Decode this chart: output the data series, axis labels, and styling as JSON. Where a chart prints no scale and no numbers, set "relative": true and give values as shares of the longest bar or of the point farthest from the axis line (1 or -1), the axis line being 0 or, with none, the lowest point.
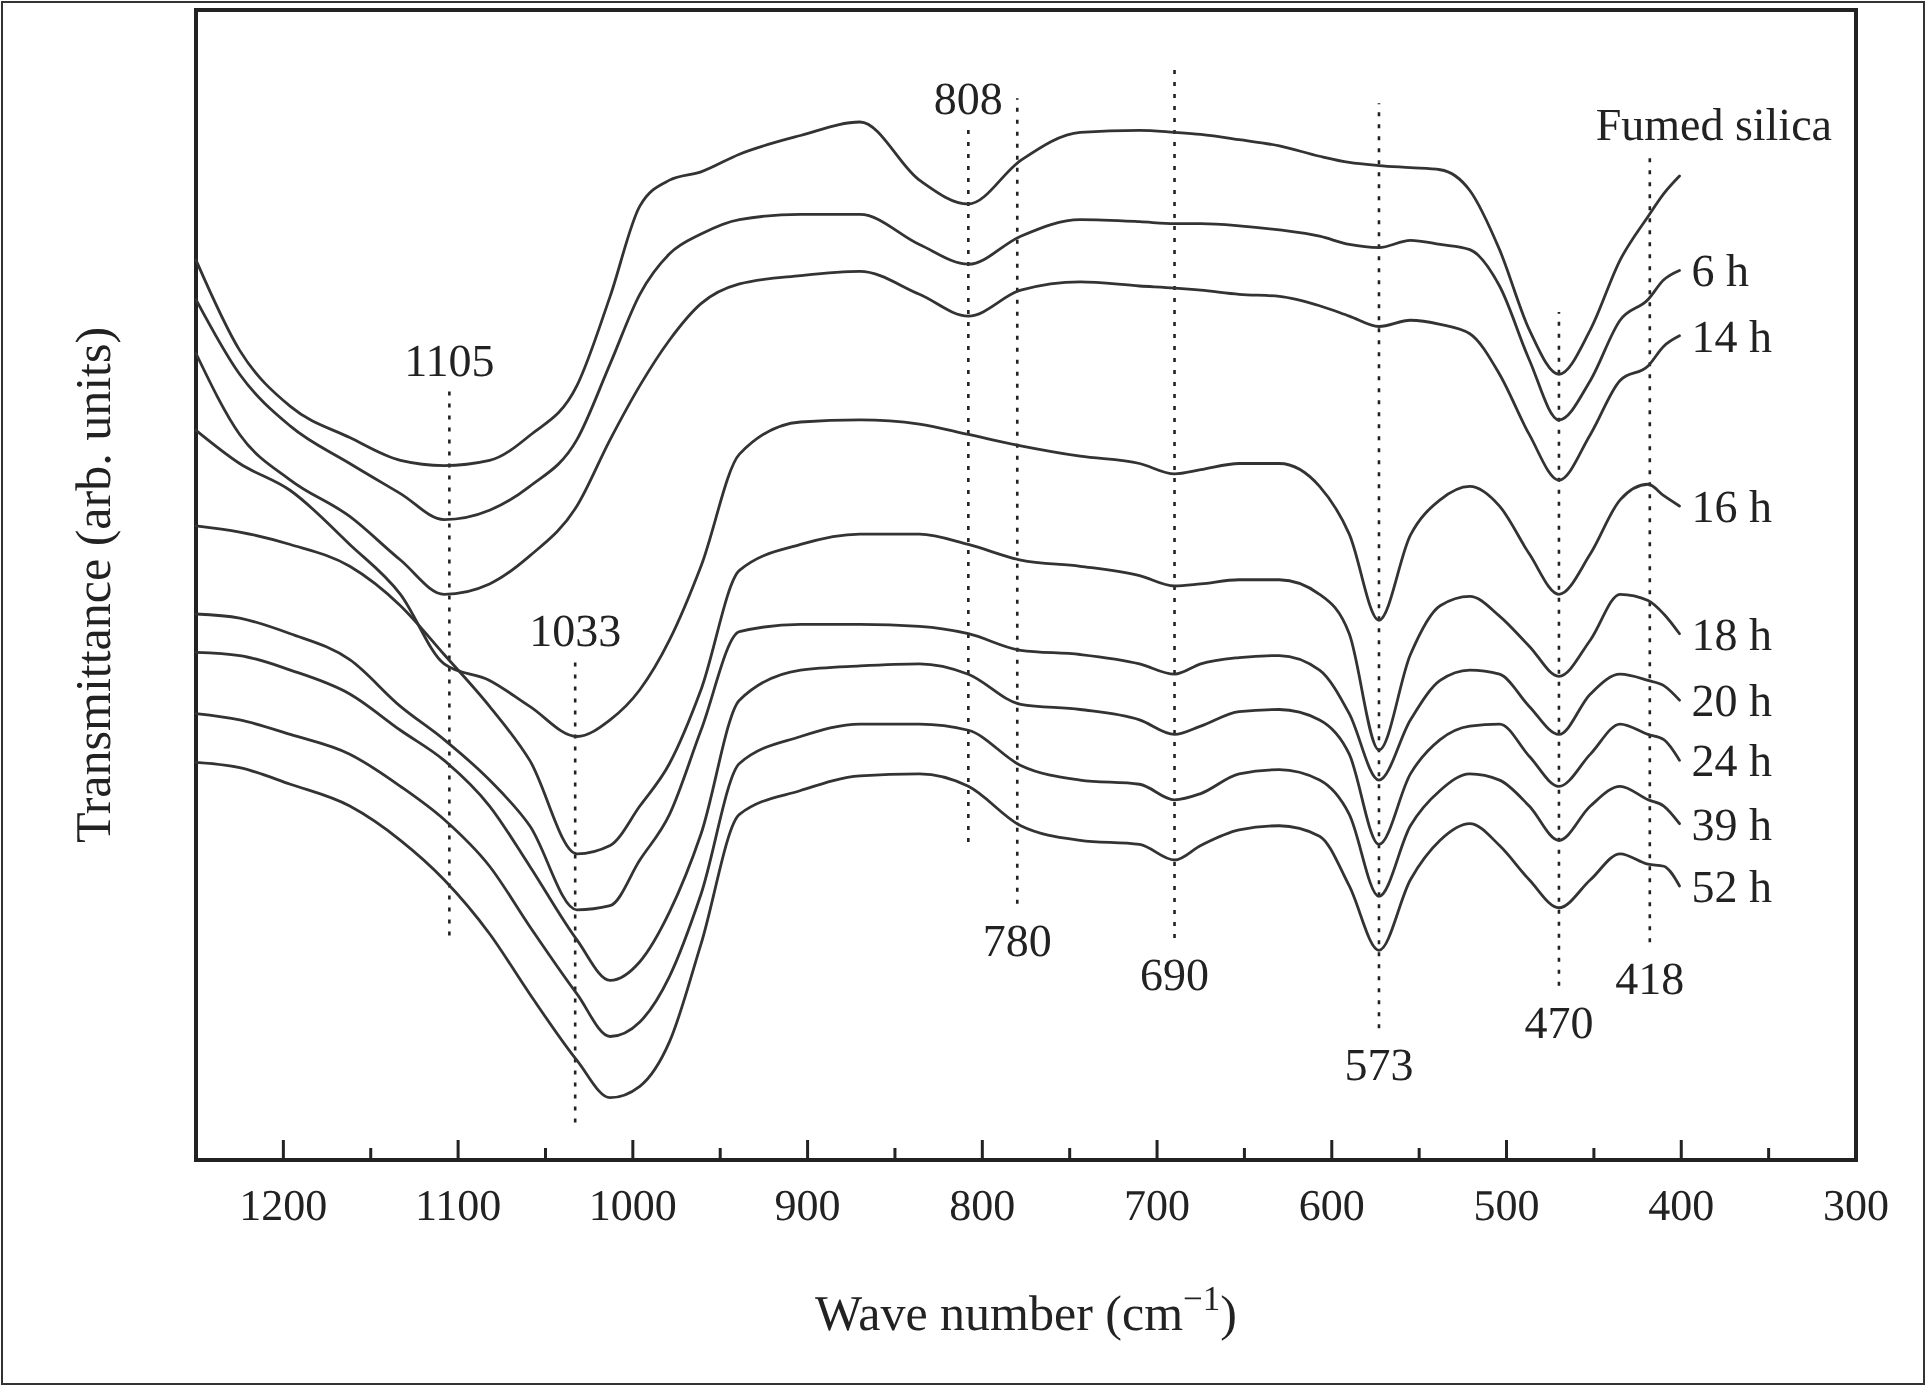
{
  "chart_data": {
    "type": "line",
    "relative": true,
    "xlabel": "Wave number (cm$^{−1}$)",
    "ylabel": "Transmittance (arb. units)",
    "xlim": [
      1250,
      300
    ],
    "xticks": [
      {
        "value": 1250,
        "label": null
      },
      1200,
      {
        "value": 1150,
        "label": null
      },
      1100,
      {
        "value": 1050,
        "label": null
      },
      1000,
      {
        "value": 950,
        "label": null
      },
      900,
      {
        "value": 850,
        "label": null
      },
      800,
      {
        "value": 750,
        "label": null
      },
      700,
      {
        "value": 650,
        "label": null
      },
      600,
      {
        "value": 550,
        "label": null
      },
      500,
      {
        "value": 450,
        "label": null
      },
      400,
      {
        "value": 350,
        "label": null
      },
      300
    ],
    "x": [
      1250,
      1225,
      1196,
      1162,
      1133,
      1108,
      1082,
      1059,
      1032,
      1013,
      996,
      979,
      961,
      939,
      904,
      870,
      836,
      808,
      778,
      744,
      710,
      690,
      675,
      653,
      630,
      607,
      590,
      573,
      555,
      538,
      521,
      504,
      487,
      470,
      452,
      435,
      419,
      410,
      401
    ],
    "series": [
      {
        "name": "Fumed silica",
        "color": "#333333",
        "values": [
          0.867,
          0.78,
          0.726,
          0.696,
          0.674,
          0.669,
          0.674,
          0.698,
          0.746,
          0.832,
          0.919,
          0.944,
          0.952,
          0.969,
          0.987,
          1,
          0.944,
          0.921,
          0.963,
          0.99,
          0.992,
          0.99,
          0.988,
          0.983,
          0.977,
          0.967,
          0.961,
          0.958,
          0.956,
          0.954,
          0.934,
          0.877,
          0.8,
          0.757,
          0.8,
          0.867,
          0.909,
          0.931,
          0.948
        ]
      },
      {
        "name": "6 h",
        "color": "#333333",
        "values": [
          0.829,
          0.757,
          0.707,
          0.671,
          0.642,
          0.617,
          0.626,
          0.649,
          0.694,
          0.767,
          0.834,
          0.873,
          0.892,
          0.906,
          0.911,
          0.911,
          0.882,
          0.863,
          0.89,
          0.906,
          0.904,
          0.902,
          0.902,
          0.9,
          0.896,
          0.89,
          0.882,
          0.879,
          0.886,
          0.882,
          0.877,
          0.842,
          0.771,
          0.713,
          0.751,
          0.809,
          0.829,
          0.848,
          0.857
        ]
      },
      {
        "name": "14 h",
        "color": "#333333",
        "values": [
          0.777,
          0.699,
          0.655,
          0.62,
          0.578,
          0.545,
          0.555,
          0.582,
          0.63,
          0.694,
          0.746,
          0.79,
          0.825,
          0.844,
          0.852,
          0.856,
          0.834,
          0.813,
          0.838,
          0.846,
          0.842,
          0.84,
          0.838,
          0.834,
          0.832,
          0.823,
          0.813,
          0.803,
          0.809,
          0.805,
          0.796,
          0.757,
          0.699,
          0.655,
          0.699,
          0.751,
          0.765,
          0.784,
          0.794
        ]
      },
      {
        "name": "16 h",
        "color": "#333333",
        "values": [
          0.703,
          0.671,
          0.645,
          0.593,
          0.545,
          0.478,
          0.462,
          0.437,
          0.408,
          0.424,
          0.453,
          0.501,
          0.572,
          0.68,
          0.711,
          0.713,
          0.709,
          0.699,
          0.688,
          0.678,
          0.671,
          0.661,
          0.665,
          0.671,
          0.671,
          0.649,
          0.603,
          0.52,
          0.602,
          0.636,
          0.649,
          0.63,
          0.584,
          0.545,
          0.584,
          0.636,
          0.651,
          0.64,
          0.63
        ]
      },
      {
        "name": "18 h",
        "color": "#333333",
        "values": [
          0.611,
          0.605,
          0.593,
          0.572,
          0.534,
          0.487,
          0.437,
          0.385,
          0.295,
          0.303,
          0.341,
          0.382,
          0.453,
          0.568,
          0.593,
          0.603,
          0.603,
          0.593,
          0.578,
          0.572,
          0.563,
          0.553,
          0.555,
          0.559,
          0.559,
          0.545,
          0.507,
          0.395,
          0.487,
          0.534,
          0.543,
          0.524,
          0.495,
          0.466,
          0.501,
          0.545,
          0.539,
          0.526,
          0.507
        ]
      },
      {
        "name": "20 h",
        "color": "#333333",
        "values": [
          0.526,
          0.522,
          0.507,
          0.482,
          0.437,
          0.405,
          0.366,
          0.322,
          0.241,
          0.245,
          0.289,
          0.333,
          0.414,
          0.509,
          0.516,
          0.516,
          0.514,
          0.507,
          0.491,
          0.487,
          0.478,
          0.468,
          0.478,
          0.484,
          0.486,
          0.472,
          0.43,
          0.366,
          0.424,
          0.462,
          0.472,
          0.468,
          0.437,
          0.41,
          0.449,
          0.468,
          0.462,
          0.457,
          0.443
        ]
      },
      {
        "name": "24 h",
        "color": "#333333",
        "values": [
          0.489,
          0.486,
          0.472,
          0.449,
          0.414,
          0.385,
          0.341,
          0.283,
          0.212,
          0.173,
          0.191,
          0.239,
          0.314,
          0.443,
          0.472,
          0.476,
          0.478,
          0.468,
          0.439,
          0.434,
          0.424,
          0.41,
          0.418,
          0.432,
          0.434,
          0.424,
          0.391,
          0.304,
          0.372,
          0.405,
          0.418,
          0.42,
          0.389,
          0.36,
          0.391,
          0.42,
          0.41,
          0.405,
          0.385
        ]
      },
      {
        "name": "39 h",
        "color": "#333333",
        "values": [
          0.43,
          0.424,
          0.41,
          0.391,
          0.36,
          0.328,
          0.283,
          0.225,
          0.16,
          0.119,
          0.133,
          0.177,
          0.256,
          0.382,
          0.408,
          0.42,
          0.42,
          0.414,
          0.38,
          0.366,
          0.362,
          0.347,
          0.353,
          0.372,
          0.376,
          0.366,
          0.333,
          0.254,
          0.322,
          0.356,
          0.372,
          0.366,
          0.341,
          0.308,
          0.341,
          0.36,
          0.347,
          0.341,
          0.324
        ]
      },
      {
        "name": "52 h",
        "color": "#333333",
        "values": [
          0.383,
          0.378,
          0.362,
          0.341,
          0.308,
          0.27,
          0.218,
          0.16,
          0.096,
          0.06,
          0.071,
          0.114,
          0.208,
          0.333,
          0.356,
          0.37,
          0.372,
          0.36,
          0.322,
          0.308,
          0.304,
          0.289,
          0.303,
          0.318,
          0.322,
          0.312,
          0.264,
          0.202,
          0.27,
          0.308,
          0.324,
          0.303,
          0.27,
          0.243,
          0.27,
          0.295,
          0.285,
          0.283,
          0.264
        ]
      }
    ],
    "ref_lines": [
      {
        "axis": "x",
        "value": 1105,
        "line_style": "dotted"
      },
      {
        "axis": "x",
        "value": 1033,
        "line_style": "dotted"
      },
      {
        "axis": "x",
        "value": 808,
        "line_style": "dotted"
      },
      {
        "axis": "x",
        "value": 780,
        "line_style": "dotted"
      },
      {
        "axis": "x",
        "value": 690,
        "line_style": "dotted"
      },
      {
        "axis": "x",
        "value": 573,
        "line_style": "dotted"
      },
      {
        "axis": "x",
        "value": 470,
        "line_style": "dotted"
      },
      {
        "axis": "x",
        "value": 418,
        "line_style": "dotted"
      }
    ],
    "annotations": [
      {
        "text": "1105",
        "x": 1105,
        "y": 0.669
      },
      {
        "text": "1033",
        "x": 1033,
        "y": 0.408
      },
      {
        "text": "808",
        "x": 808,
        "y": 0.921
      },
      {
        "text": "780",
        "x": 780,
        "y": 0.322
      },
      {
        "text": "690",
        "x": 690,
        "y": 0.289
      },
      {
        "text": "573",
        "x": 573,
        "y": 0.202
      },
      {
        "text": "470",
        "x": 470,
        "y": 0.243
      },
      {
        "text": "418",
        "x": 418,
        "y": 0.285
      }
    ]
  }
}
